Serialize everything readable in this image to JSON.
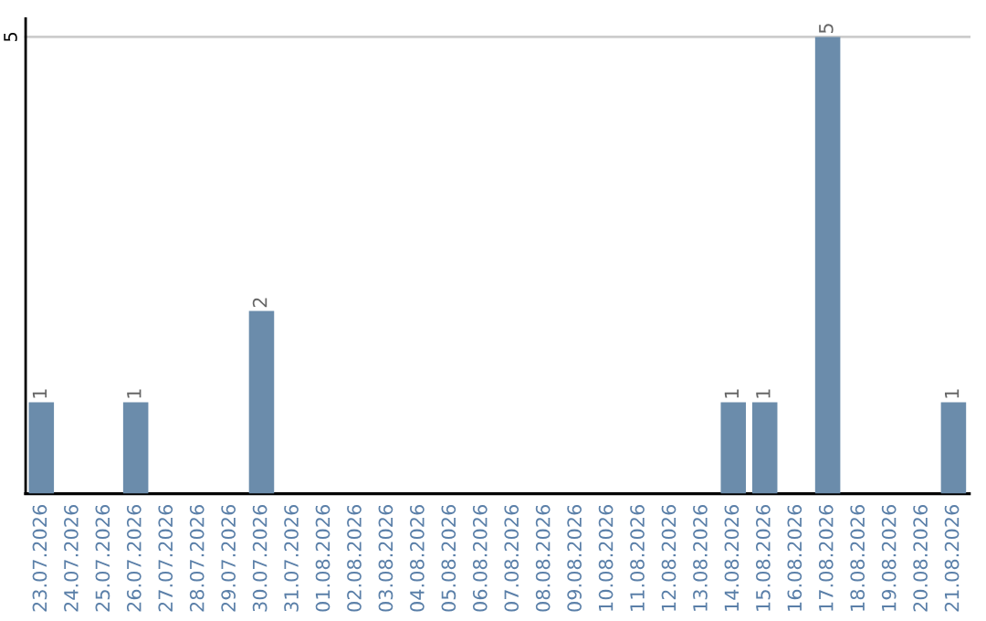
{
  "chart_data": {
    "type": "bar",
    "categories": [
      "23.07.2026",
      "24.07.2026",
      "25.07.2026",
      "26.07.2026",
      "27.07.2026",
      "28.07.2026",
      "29.07.2026",
      "30.07.2026",
      "31.07.2026",
      "01.08.2026",
      "02.08.2026",
      "03.08.2026",
      "04.08.2026",
      "05.08.2026",
      "06.08.2026",
      "07.08.2026",
      "08.08.2026",
      "09.08.2026",
      "10.08.2026",
      "11.08.2026",
      "12.08.2026",
      "13.08.2026",
      "14.08.2026",
      "15.08.2026",
      "16.08.2026",
      "17.08.2026",
      "18.08.2026",
      "19.08.2026",
      "20.08.2026",
      "21.08.2026"
    ],
    "values": [
      1,
      0,
      0,
      1,
      0,
      0,
      0,
      2,
      0,
      0,
      0,
      0,
      0,
      0,
      0,
      0,
      0,
      0,
      0,
      0,
      0,
      0,
      1,
      1,
      0,
      5,
      0,
      0,
      0,
      1
    ],
    "color": "#6b8cab",
    "ylim": [
      0,
      5.2
    ],
    "yticks": [
      5
    ],
    "grid": "y",
    "value_labels": [
      "1",
      null,
      null,
      "1",
      null,
      null,
      null,
      "2",
      null,
      null,
      null,
      null,
      null,
      null,
      null,
      null,
      null,
      null,
      null,
      null,
      null,
      null,
      "1",
      "1",
      null,
      "5",
      null,
      null,
      null,
      "1"
    ]
  }
}
